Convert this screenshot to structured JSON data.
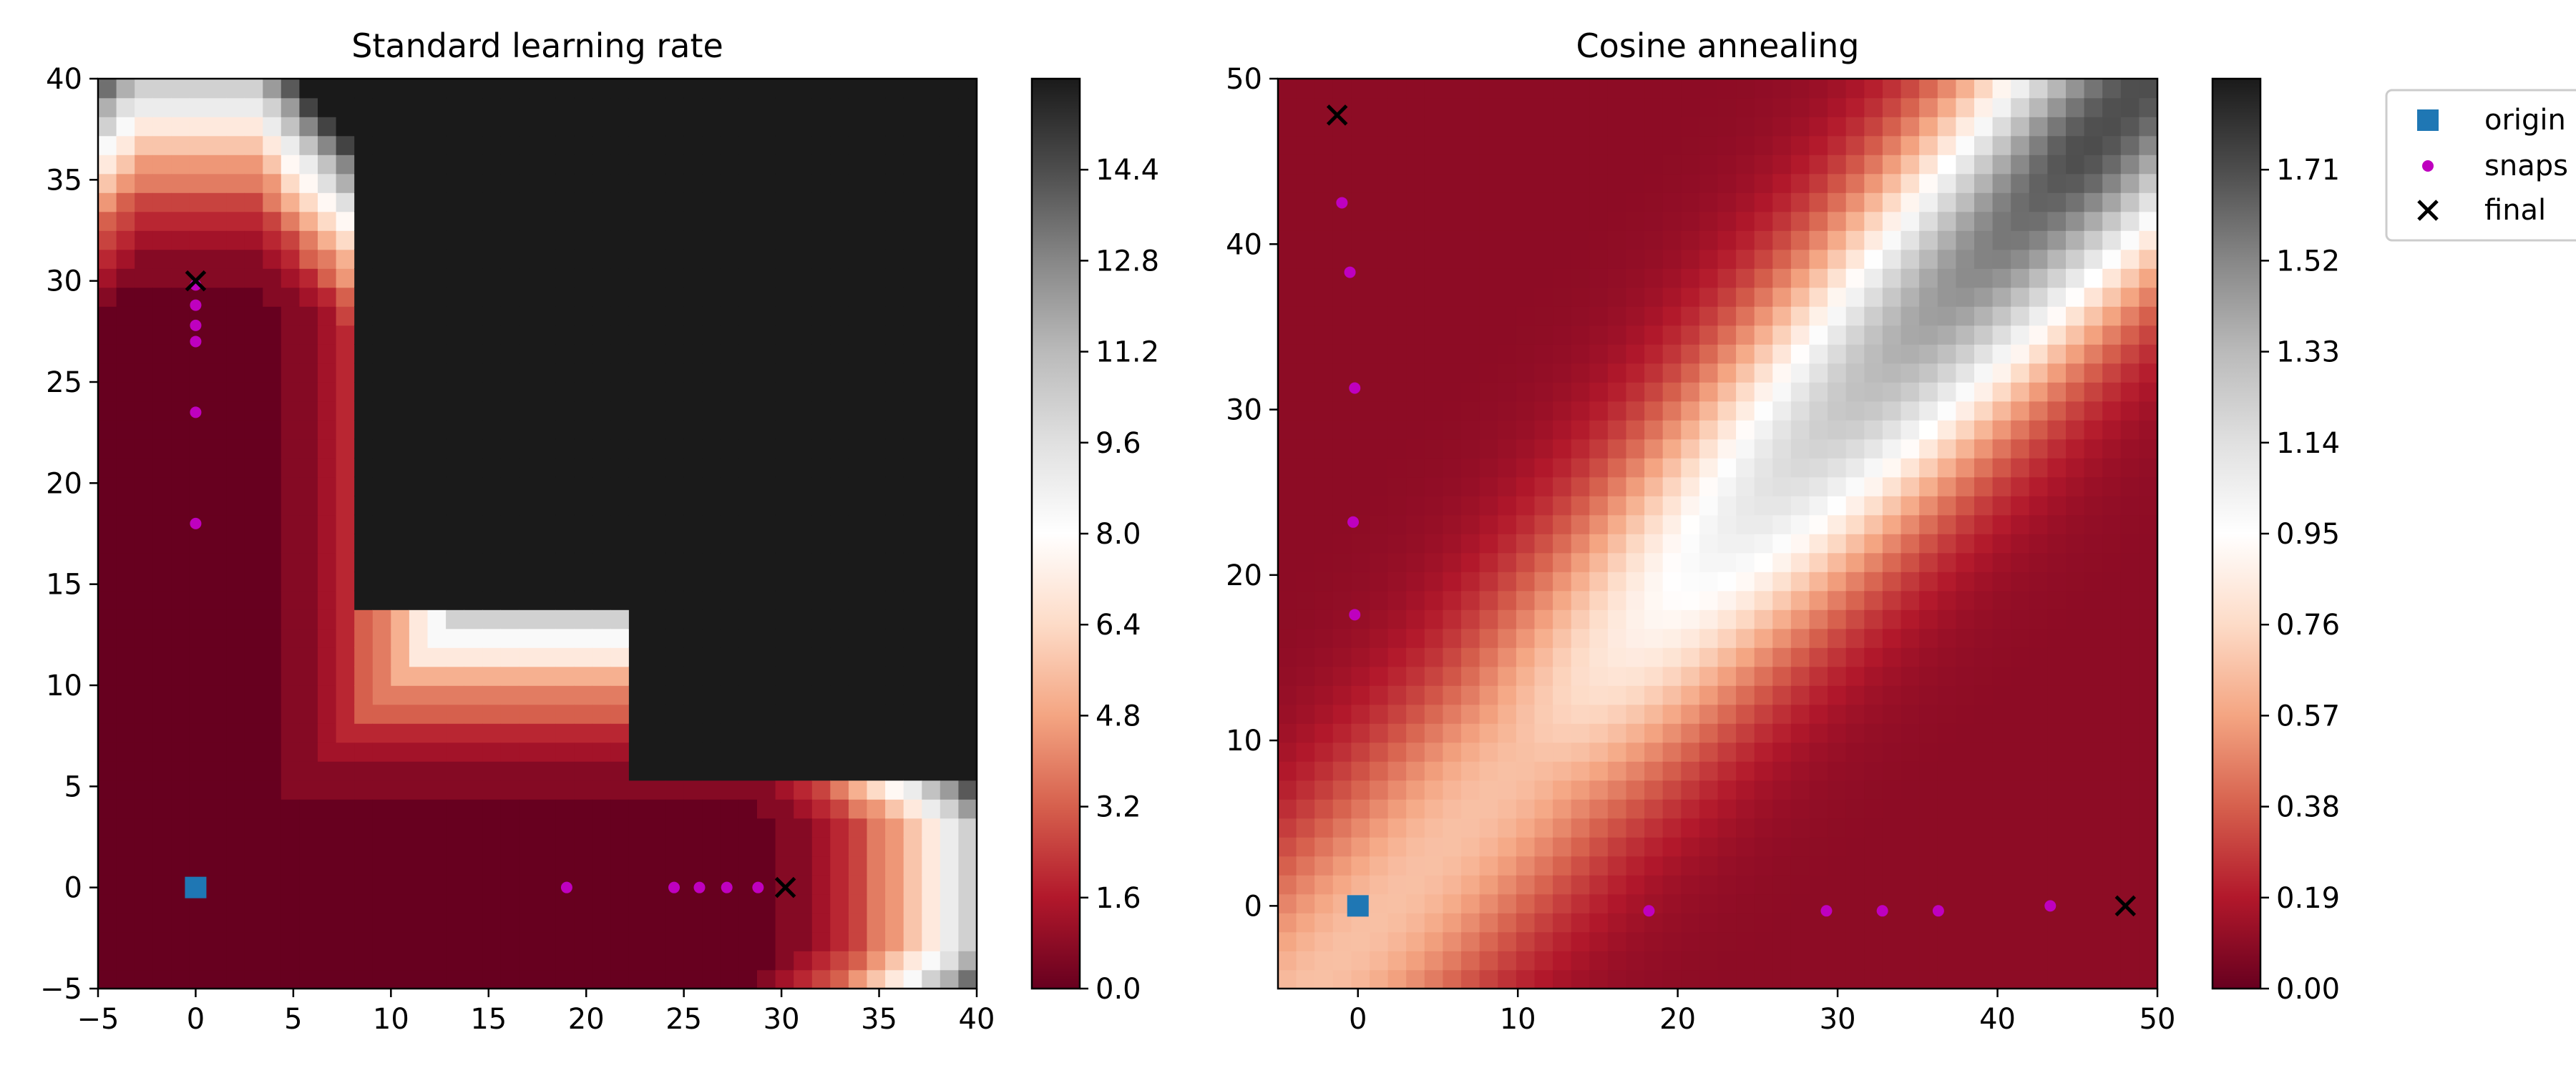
{
  "chart_data": [
    {
      "type": "heatmap",
      "title": "Standard learning rate",
      "xlim": [
        -5,
        40
      ],
      "ylim": [
        -5,
        40
      ],
      "xticks": [
        "−5",
        "0",
        "5",
        "10",
        "15",
        "20",
        "25",
        "30",
        "35",
        "40"
      ],
      "yticks": [
        "−5",
        "0",
        "5",
        "10",
        "15",
        "20",
        "25",
        "30",
        "35",
        "40"
      ],
      "colorbar": {
        "range": [
          0.0,
          16.0
        ],
        "ticks": [
          "0.0",
          "1.6",
          "3.2",
          "4.8",
          "6.4",
          "8.0",
          "9.6",
          "11.2",
          "12.8",
          "14.4"
        ],
        "colormap": [
          "#67001f",
          "#b2182b",
          "#d6604d",
          "#f4a582",
          "#fddbc7",
          "#ffffff",
          "#e0e0e0",
          "#bababa",
          "#878787",
          "#4d4d4d",
          "#1a1a1a"
        ],
        "style": "filled contours"
      },
      "series": [
        {
          "name": "origin",
          "x": [
            0
          ],
          "y": [
            0
          ],
          "marker": "square",
          "color": "#1f77b4"
        },
        {
          "name": "snaps",
          "x": [
            0,
            0,
            0,
            0,
            0,
            0,
            19,
            24.5,
            25.8,
            27.2,
            28.8
          ],
          "y": [
            18,
            23.5,
            27,
            27.8,
            28.8,
            29.8,
            0,
            0,
            0,
            0,
            0
          ],
          "marker": "dot",
          "color": "#bf00bf"
        },
        {
          "name": "final",
          "x": [
            0,
            30.2
          ],
          "y": [
            30,
            0
          ],
          "marker": "x",
          "color": "#000000"
        }
      ]
    },
    {
      "type": "heatmap",
      "title": "Cosine annealing",
      "xlim": [
        -5,
        50
      ],
      "ylim": [
        -5,
        50
      ],
      "xticks": [
        "0",
        "10",
        "20",
        "30",
        "40",
        "50"
      ],
      "yticks": [
        "0",
        "10",
        "20",
        "30",
        "40",
        "50"
      ],
      "colorbar": {
        "range": [
          0.0,
          1.9
        ],
        "ticks": [
          "0.00",
          "0.19",
          "0.38",
          "0.57",
          "0.76",
          "0.95",
          "1.14",
          "1.33",
          "1.52",
          "1.71"
        ],
        "colormap": [
          "#67001f",
          "#b2182b",
          "#d6604d",
          "#f4a582",
          "#fddbc7",
          "#ffffff",
          "#e0e0e0",
          "#bababa",
          "#878787",
          "#4d4d4d",
          "#1a1a1a"
        ],
        "style": "smooth"
      },
      "series": [
        {
          "name": "origin",
          "x": [
            0
          ],
          "y": [
            0
          ],
          "marker": "square",
          "color": "#1f77b4"
        },
        {
          "name": "snaps",
          "x": [
            -1,
            -0.5,
            -0.2,
            -0.3,
            -0.2,
            18.2,
            29.3,
            32.8,
            36.3,
            43.3
          ],
          "y": [
            42.5,
            38.3,
            31.3,
            23.2,
            17.6,
            -0.3,
            -0.3,
            -0.3,
            -0.3,
            0
          ],
          "marker": "dot",
          "color": "#bf00bf"
        },
        {
          "name": "final",
          "x": [
            -1.3,
            48
          ],
          "y": [
            47.8,
            0
          ],
          "marker": "x",
          "color": "#000000"
        }
      ]
    }
  ],
  "legend": {
    "placement": "upper right, outside plots",
    "entries": [
      {
        "label": "origin",
        "marker": "square",
        "color": "#1f77b4"
      },
      {
        "label": "snaps",
        "marker": "dot",
        "color": "#bf00bf"
      },
      {
        "label": "final",
        "marker": "x",
        "color": "#000000"
      }
    ]
  }
}
